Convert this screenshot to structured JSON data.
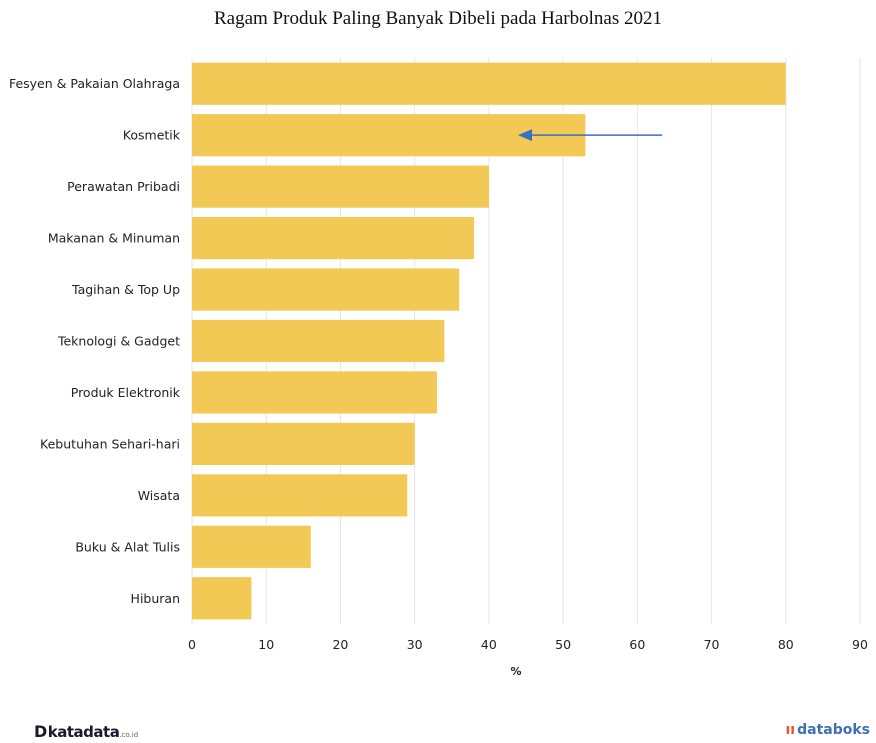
{
  "chart_data": {
    "type": "bar",
    "orientation": "horizontal",
    "title": "Ragam Produk Paling Banyak Dibeli pada Harbolnas 2021",
    "xlabel": "%",
    "ylabel": "",
    "categories": [
      "Fesyen & Pakaian Olahraga",
      "Kosmetik",
      "Perawatan Pribadi",
      "Makanan & Minuman",
      "Tagihan & Top Up",
      "Teknologi & Gadget",
      "Produk Elektronik",
      "Kebutuhan Sehari-hari",
      "Wisata",
      "Buku & Alat Tulis",
      "Hiburan"
    ],
    "values": [
      80,
      53,
      40,
      38,
      36,
      34,
      33,
      30,
      29,
      16,
      8
    ],
    "xlim": [
      0,
      90
    ],
    "xticks": [
      "0",
      "10",
      "20",
      "30",
      "40",
      "50",
      "60",
      "70",
      "80",
      "90"
    ],
    "grid": "vertical",
    "bar_color": "#f2c955",
    "annotation": {
      "type": "arrow",
      "target_category": "Kosmetik",
      "color": "#3a6fc4"
    }
  },
  "branding": {
    "left_mark": "D",
    "left_name": "katadata",
    "left_suffix": ".co.id",
    "right_mark": "ıı",
    "right_name": "databoks"
  }
}
